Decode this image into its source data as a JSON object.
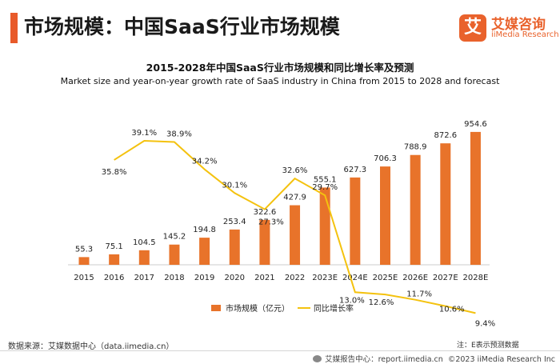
{
  "header": {
    "title": "市场规模：中国SaaS行业市场规模"
  },
  "logo": {
    "badge": "艾",
    "name_cn": "艾媒咨询",
    "name_en": "iiMedia Research"
  },
  "chart_data": {
    "type": "bar",
    "title": "2015-2028年中国SaaS行业市场规模和同比增长率及预测",
    "subtitle": "Market size and year-on-year growth rate of SaaS industry in China from 2015 to 2028 and forecast",
    "categories": [
      "2015",
      "2016",
      "2017",
      "2018",
      "2019",
      "2020",
      "2021",
      "2022",
      "2023E",
      "2024E",
      "2025E",
      "2026E",
      "2027E",
      "2028E"
    ],
    "series": [
      {
        "name": "市场规模（亿元）",
        "type": "bar",
        "color": "#e8732a",
        "values": [
          55.3,
          75.1,
          104.5,
          145.2,
          194.8,
          253.4,
          322.6,
          427.9,
          555.1,
          627.3,
          706.3,
          788.9,
          872.6,
          954.6
        ]
      },
      {
        "name": "同比增长率",
        "type": "line",
        "color": "#f4c20f",
        "values": [
          null,
          35.8,
          39.1,
          38.9,
          34.2,
          30.1,
          27.3,
          32.6,
          29.7,
          13.0,
          12.6,
          11.7,
          10.6,
          9.4
        ],
        "labels": [
          null,
          "35.8%",
          "39.1%",
          "38.9%",
          "34.2%",
          "30.1%",
          "27.3%",
          "32.6%",
          "29.7%",
          "13.0%",
          "12.6%",
          "11.7%",
          "10.6%",
          "9.4%"
        ]
      }
    ],
    "legend_position": "bottom",
    "grid": false
  },
  "footer": {
    "source": "数据来源：艾媒数据中心（data.iimedia.cn）",
    "note": "注：E表示预测数据",
    "report": "艾媒报告中心：report.iimedia.cn",
    "copyright": "©2023  iiMedia Research  Inc"
  }
}
